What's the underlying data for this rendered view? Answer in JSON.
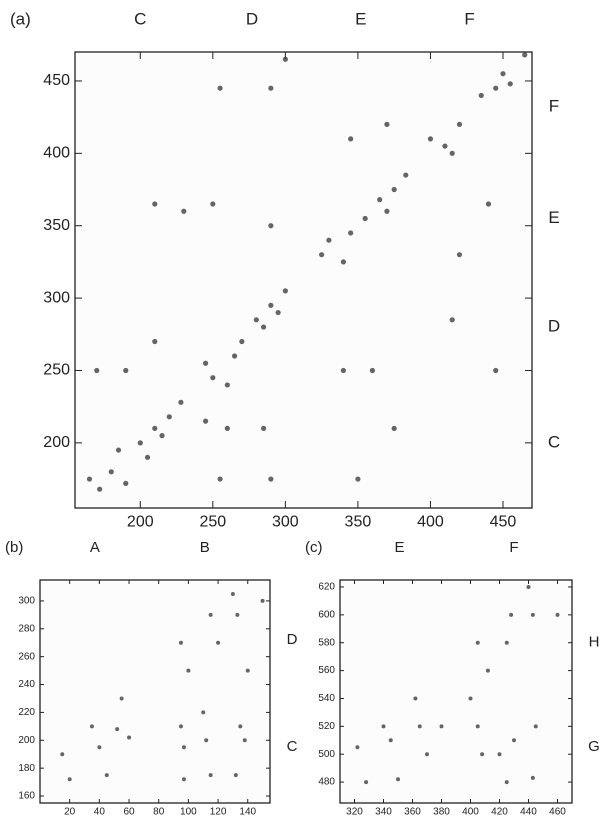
{
  "chart_data": [
    {
      "type": "scatter",
      "panel": "(a)",
      "color": "#333333",
      "xlim": [
        155,
        470
      ],
      "ylim": [
        155,
        470
      ],
      "xticks": [
        200,
        250,
        300,
        350,
        400,
        450
      ],
      "yticks": [
        200,
        250,
        300,
        350,
        400,
        450
      ],
      "top_labels": [
        {
          "label": "C",
          "value": 200
        },
        {
          "label": "D",
          "value": 277
        },
        {
          "label": "E",
          "value": 352
        },
        {
          "label": "F",
          "value": 427
        }
      ],
      "right_labels": [
        {
          "label": "F",
          "value": 432
        },
        {
          "label": "E",
          "value": 355
        },
        {
          "label": "D",
          "value": 280
        },
        {
          "label": "C",
          "value": 200
        }
      ],
      "x": [
        165,
        172,
        180,
        190,
        200,
        210,
        215,
        220,
        205,
        185,
        228,
        245,
        250,
        260,
        265,
        280,
        290,
        285,
        300,
        270,
        295,
        325,
        330,
        340,
        345,
        355,
        365,
        370,
        375,
        383,
        400,
        410,
        415,
        420,
        435,
        445,
        450,
        455,
        465,
        210,
        190,
        170,
        245,
        260,
        285,
        290,
        255,
        350,
        375,
        340,
        360,
        445,
        415,
        230,
        210,
        250,
        290,
        420,
        440,
        255,
        290,
        300,
        345,
        370
      ],
      "y": [
        175,
        168,
        180,
        172,
        200,
        210,
        205,
        218,
        190,
        195,
        228,
        255,
        245,
        240,
        260,
        285,
        295,
        280,
        305,
        270,
        290,
        330,
        340,
        325,
        345,
        355,
        368,
        360,
        375,
        385,
        410,
        405,
        400,
        420,
        440,
        445,
        455,
        448,
        468,
        270,
        250,
        250,
        215,
        210,
        210,
        175,
        175,
        175,
        210,
        250,
        250,
        250,
        285,
        360,
        365,
        365,
        350,
        330,
        365,
        445,
        445,
        465,
        410,
        420
      ]
    },
    {
      "type": "scatter",
      "panel": "(b)",
      "color": "#333333",
      "xlim": [
        0,
        155
      ],
      "ylim": [
        155,
        315
      ],
      "xticks": [
        20,
        40,
        60,
        80,
        100,
        120,
        140
      ],
      "yticks": [
        160,
        180,
        200,
        220,
        240,
        260,
        280,
        300
      ],
      "top_labels": [
        {
          "label": "A",
          "value": 37
        },
        {
          "label": "B",
          "value": 111
        }
      ],
      "right_labels": [
        {
          "label": "D",
          "value": 272
        },
        {
          "label": "C",
          "value": 195
        }
      ],
      "x": [
        15,
        20,
        35,
        40,
        52,
        55,
        60,
        45,
        95,
        97,
        100,
        112,
        115,
        120,
        130,
        133,
        135,
        138,
        110,
        95,
        150,
        115,
        97,
        132,
        140
      ],
      "y": [
        190,
        172,
        210,
        195,
        208,
        230,
        202,
        175,
        210,
        195,
        250,
        200,
        290,
        270,
        305,
        290,
        210,
        200,
        220,
        270,
        300,
        175,
        172,
        175,
        250
      ]
    },
    {
      "type": "scatter",
      "panel": "(c)",
      "color": "#333333",
      "xlim": [
        310,
        470
      ],
      "ylim": [
        465,
        625
      ],
      "xticks": [
        320,
        340,
        360,
        380,
        400,
        420,
        440,
        460
      ],
      "yticks": [
        480,
        500,
        520,
        540,
        560,
        580,
        600,
        620
      ],
      "top_labels": [
        {
          "label": "E",
          "value": 351
        },
        {
          "label": "F",
          "value": 430
        }
      ],
      "right_labels": [
        {
          "label": "H",
          "value": 580
        },
        {
          "label": "G",
          "value": 505
        }
      ],
      "x": [
        322,
        328,
        340,
        345,
        362,
        365,
        370,
        350,
        405,
        408,
        412,
        425,
        428,
        440,
        443,
        445,
        430,
        420,
        405,
        460,
        425,
        443,
        400,
        380
      ],
      "y": [
        505,
        480,
        520,
        510,
        540,
        520,
        500,
        482,
        520,
        500,
        560,
        580,
        600,
        620,
        600,
        520,
        510,
        500,
        580,
        600,
        480,
        483,
        540,
        520
      ]
    }
  ]
}
